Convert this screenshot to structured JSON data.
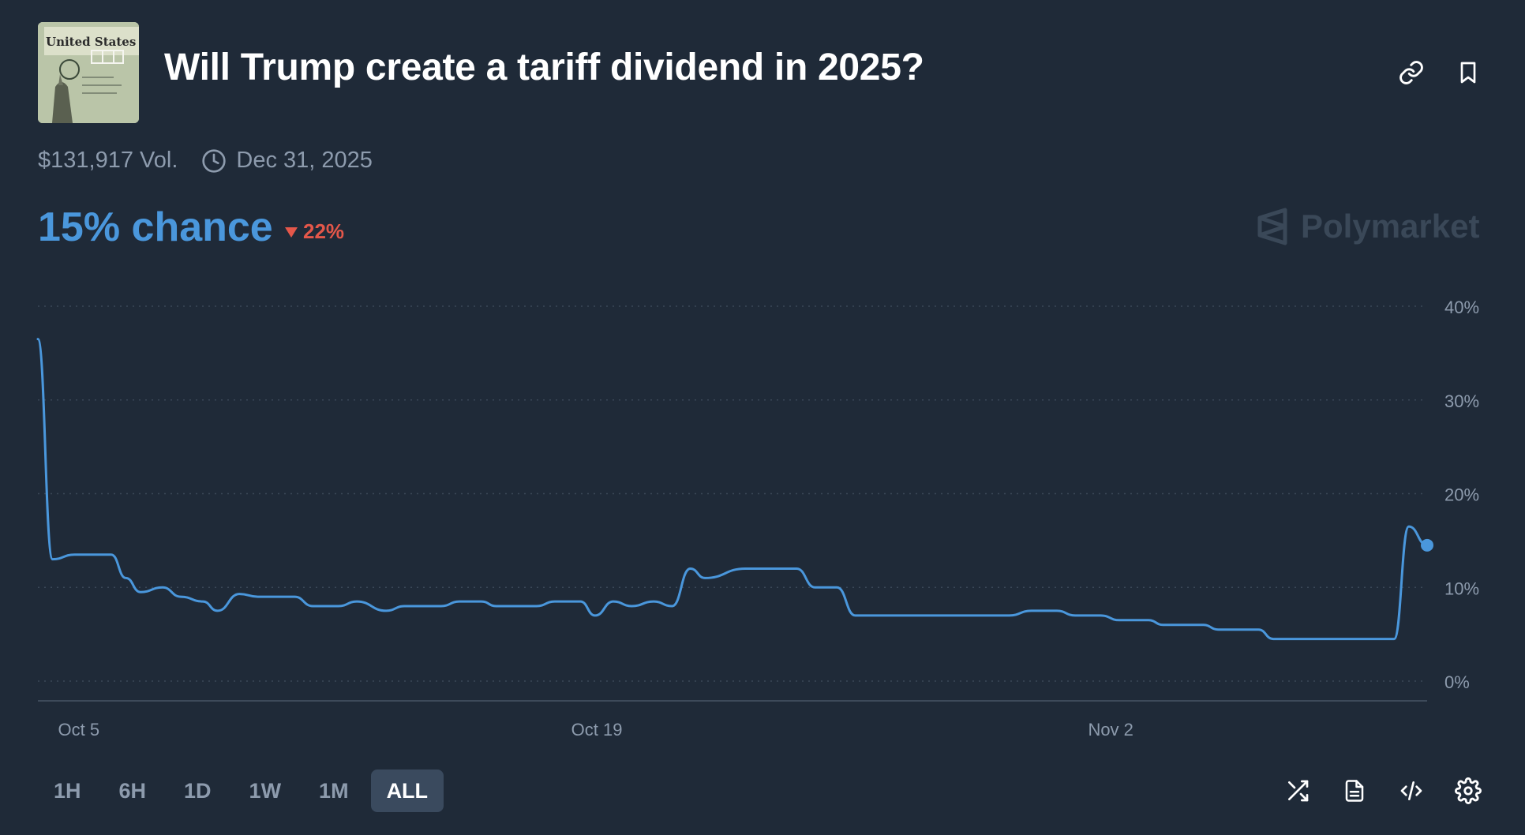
{
  "market": {
    "title": "Will Trump create a tariff dividend in 2025?",
    "volume": "$131,917 Vol.",
    "end_date": "Dec 31, 2025",
    "chance": "15% chance",
    "change": "22%",
    "change_direction": "down",
    "brand": "Polymarket",
    "image_icon": "treasury-check-thumbnail"
  },
  "colors": {
    "background": "#1f2a38",
    "line": "#4a97dc",
    "negative": "#e4574a",
    "muted": "#8d9bad"
  },
  "toolbar": {
    "icons": [
      "link-icon",
      "bookmark-icon"
    ]
  },
  "time_ranges": {
    "options": [
      "1H",
      "6H",
      "1D",
      "1W",
      "1M",
      "ALL"
    ],
    "selected": "ALL"
  },
  "chart_tools": [
    "shuffle-icon",
    "document-icon",
    "embed-code-icon",
    "settings-icon"
  ],
  "chart_data": {
    "type": "line",
    "title": "",
    "xlabel": "",
    "ylabel": "",
    "ylim": [
      0,
      40
    ],
    "y_ticks": [
      "40%",
      "30%",
      "20%",
      "10%",
      "0%"
    ],
    "x_ticks": [
      "Oct 5",
      "Oct 19",
      "Nov 2"
    ],
    "grid": true,
    "series": [
      {
        "values": [
          [
            0.0,
            36.5
          ],
          [
            0.4,
            13.0
          ],
          [
            1.0,
            13.5
          ],
          [
            2.0,
            13.5
          ],
          [
            2.4,
            11.0
          ],
          [
            2.8,
            9.5
          ],
          [
            3.4,
            10.0
          ],
          [
            3.9,
            9.0
          ],
          [
            4.5,
            8.5
          ],
          [
            4.9,
            7.5
          ],
          [
            5.5,
            9.3
          ],
          [
            6.0,
            9.0
          ],
          [
            7.0,
            9.0
          ],
          [
            7.5,
            8.0
          ],
          [
            8.2,
            8.0
          ],
          [
            8.7,
            8.5
          ],
          [
            9.5,
            7.5
          ],
          [
            10.0,
            8.0
          ],
          [
            11.0,
            8.0
          ],
          [
            11.5,
            8.5
          ],
          [
            12.1,
            8.5
          ],
          [
            12.5,
            8.0
          ],
          [
            13.6,
            8.0
          ],
          [
            14.1,
            8.5
          ],
          [
            14.8,
            8.5
          ],
          [
            15.2,
            7.0
          ],
          [
            15.7,
            8.5
          ],
          [
            16.2,
            8.0
          ],
          [
            16.8,
            8.5
          ],
          [
            17.3,
            8.0
          ],
          [
            17.8,
            12.0
          ],
          [
            18.2,
            11.0
          ],
          [
            19.3,
            12.0
          ],
          [
            20.7,
            12.0
          ],
          [
            21.2,
            10.0
          ],
          [
            21.8,
            10.0
          ],
          [
            22.3,
            7.0
          ],
          [
            25.1,
            7.0
          ],
          [
            26.5,
            7.0
          ],
          [
            27.1,
            7.5
          ],
          [
            27.8,
            7.5
          ],
          [
            28.3,
            7.0
          ],
          [
            29.0,
            7.0
          ],
          [
            29.5,
            6.5
          ],
          [
            30.3,
            6.5
          ],
          [
            30.7,
            6.0
          ],
          [
            31.8,
            6.0
          ],
          [
            32.2,
            5.5
          ],
          [
            33.3,
            5.5
          ],
          [
            33.7,
            4.5
          ],
          [
            35.0,
            4.5
          ],
          [
            36.7,
            4.5
          ],
          [
            37.0,
            4.5
          ],
          [
            37.4,
            16.5
          ],
          [
            37.9,
            14.5
          ]
        ]
      }
    ]
  }
}
